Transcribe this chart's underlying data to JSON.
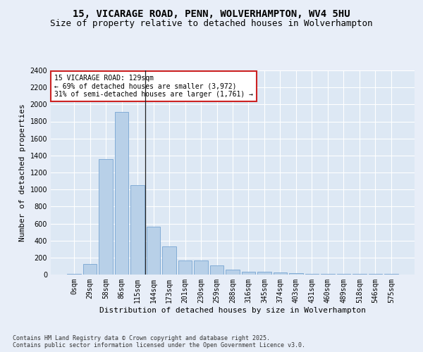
{
  "title": "15, VICARAGE ROAD, PENN, WOLVERHAMPTON, WV4 5HU",
  "subtitle": "Size of property relative to detached houses in Wolverhampton",
  "xlabel": "Distribution of detached houses by size in Wolverhampton",
  "ylabel": "Number of detached properties",
  "bar_values": [
    10,
    125,
    1360,
    1910,
    1055,
    560,
    335,
    165,
    165,
    105,
    60,
    35,
    30,
    25,
    15,
    5,
    5,
    5,
    5,
    5,
    5
  ],
  "categories": [
    "0sqm",
    "29sqm",
    "58sqm",
    "86sqm",
    "115sqm",
    "144sqm",
    "173sqm",
    "201sqm",
    "230sqm",
    "259sqm",
    "288sqm",
    "316sqm",
    "345sqm",
    "374sqm",
    "403sqm",
    "431sqm",
    "460sqm",
    "489sqm",
    "518sqm",
    "546sqm",
    "575sqm"
  ],
  "bar_color": "#b8d0e8",
  "bar_edge_color": "#6699cc",
  "plot_bg_color": "#dde8f4",
  "fig_bg_color": "#e8eef8",
  "grid_color": "#ffffff",
  "annotation_text_line1": "15 VICARAGE ROAD: 129sqm",
  "annotation_text_line2": "← 69% of detached houses are smaller (3,972)",
  "annotation_text_line3": "31% of semi-detached houses are larger (1,761) →",
  "annotation_box_facecolor": "#ffffff",
  "annotation_box_edgecolor": "#cc2222",
  "vline_x": 4.5,
  "ylim": [
    0,
    2400
  ],
  "yticks": [
    0,
    200,
    400,
    600,
    800,
    1000,
    1200,
    1400,
    1600,
    1800,
    2000,
    2200,
    2400
  ],
  "footer_text": "Contains HM Land Registry data © Crown copyright and database right 2025.\nContains public sector information licensed under the Open Government Licence v3.0.",
  "title_fontsize": 10,
  "subtitle_fontsize": 9,
  "xlabel_fontsize": 8,
  "ylabel_fontsize": 8,
  "tick_fontsize": 7,
  "annotation_fontsize": 7,
  "footer_fontsize": 6
}
